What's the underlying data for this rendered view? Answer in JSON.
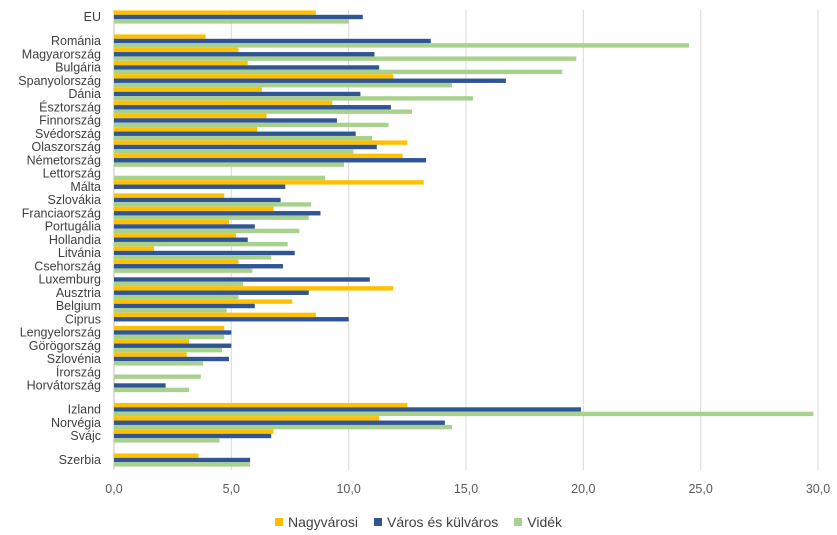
{
  "chart_data": {
    "type": "bar",
    "orientation": "horizontal",
    "categories": [
      "EU",
      "Románia",
      "Magyarország",
      "Bulgária",
      "Spanyolország",
      "Dánia",
      "Észtország",
      "Finnország",
      "Svédország",
      "Olaszország",
      "Németország",
      "Lettország",
      "Málta",
      "Szlovákia",
      "Franciaország",
      "Portugália",
      "Hollandia",
      "Litvánia",
      "Csehország",
      "Luxemburg",
      "Ausztria",
      "Belgium",
      "Ciprus",
      "Lengyelország",
      "Görögország",
      "Szlovénia",
      "Írország",
      "Horvátország",
      "Izland",
      "Norvégia",
      "Svájc",
      "Szerbia"
    ],
    "series": [
      {
        "name": "Nagyvárosi",
        "color": "#FFC000",
        "values": [
          8.6,
          3.9,
          5.3,
          5.7,
          11.9,
          6.3,
          9.3,
          6.5,
          6.1,
          12.5,
          12.3,
          null,
          13.2,
          4.7,
          6.8,
          4.9,
          5.2,
          1.7,
          5.3,
          null,
          11.9,
          7.6,
          8.6,
          4.7,
          3.2,
          3.1,
          null,
          null,
          12.5,
          11.3,
          6.8,
          3.6
        ]
      },
      {
        "name": "Város és külváros",
        "color": "#2F5597",
        "values": [
          10.6,
          13.5,
          11.1,
          11.3,
          16.7,
          10.5,
          11.8,
          9.5,
          10.3,
          11.2,
          13.3,
          null,
          7.3,
          7.1,
          8.8,
          6.0,
          5.7,
          7.7,
          7.2,
          10.9,
          8.3,
          6.0,
          10.0,
          5.0,
          5.0,
          4.9,
          null,
          2.2,
          19.9,
          14.1,
          6.7,
          5.8
        ]
      },
      {
        "name": "Vidék",
        "color": "#A9D18E",
        "values": [
          10.0,
          24.5,
          19.7,
          19.1,
          14.4,
          15.3,
          12.7,
          11.7,
          11.0,
          10.2,
          9.8,
          9.0,
          null,
          8.4,
          8.3,
          7.9,
          7.4,
          6.7,
          5.9,
          5.5,
          5.3,
          4.8,
          null,
          4.7,
          4.6,
          3.8,
          3.7,
          3.2,
          29.8,
          14.4,
          4.5,
          5.8
        ]
      }
    ],
    "xlim": [
      0,
      30
    ],
    "xticks": [
      "0,0",
      "5,0",
      "10,0",
      "15,0",
      "20,0",
      "25,0",
      "30,0"
    ],
    "grid": true,
    "legend_position": "bottom"
  }
}
